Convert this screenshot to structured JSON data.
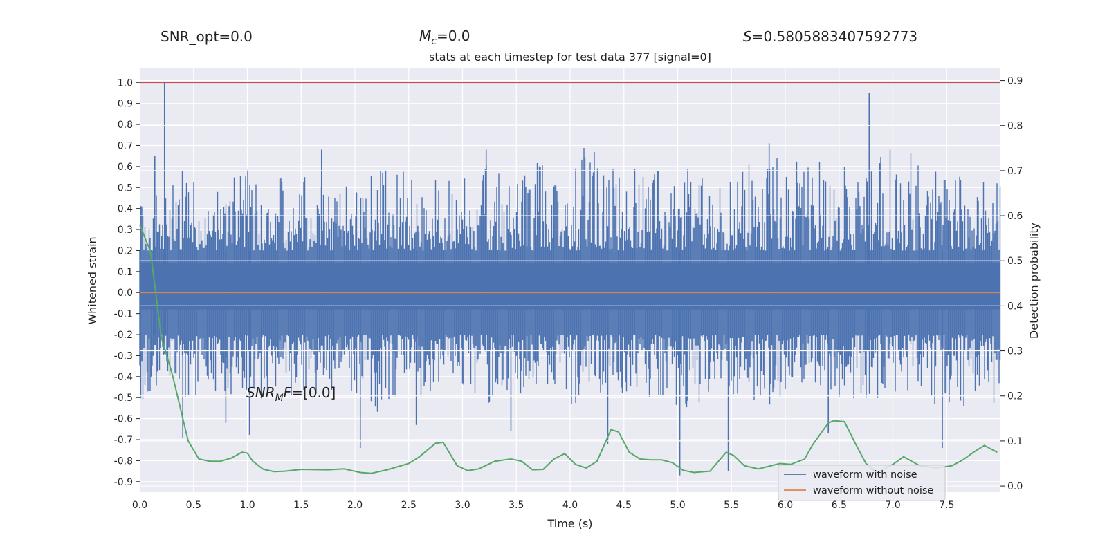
{
  "header": {
    "snr_opt_name": "SNR_opt",
    "snr_opt_value": "=0.0",
    "mc_main": "M",
    "mc_sub": "c",
    "mc_value": "=0.0",
    "s_name": "S",
    "s_value": "=0.5805883407592773"
  },
  "annotation": {
    "snr_main": "SNR",
    "snr_sub": "M",
    "snr_f": "F",
    "snr_value": "=[0.0]"
  },
  "chart_data": {
    "type": "line",
    "title": "stats at each timestep for test data 377 [signal=0]",
    "xlabel": "Time (s)",
    "ylabel": "Whitened strain",
    "y2label": "Detection probability",
    "xlim": [
      0.0,
      8.0
    ],
    "ylim": [
      -0.95,
      1.07
    ],
    "y2lim": [
      -0.0137,
      0.9285
    ],
    "xticks": [
      "0.0",
      "0.5",
      "1.0",
      "1.5",
      "2.0",
      "2.5",
      "3.0",
      "3.5",
      "4.0",
      "4.5",
      "5.0",
      "5.5",
      "6.0",
      "6.5",
      "7.0",
      "7.5"
    ],
    "yticks": [
      "1.0",
      "0.9",
      "0.8",
      "0.7",
      "0.6",
      "0.5",
      "0.4",
      "0.3",
      "0.2",
      "0.1",
      "0.0",
      "-0.1",
      "-0.2",
      "-0.3",
      "-0.4",
      "-0.5",
      "-0.6",
      "-0.7",
      "-0.8",
      "-0.9"
    ],
    "y2ticks": [
      "0.9",
      "0.8",
      "0.7",
      "0.6",
      "0.5",
      "0.4",
      "0.3",
      "0.2",
      "0.1",
      "0.0"
    ],
    "grid": true,
    "legend_position": "lower-right",
    "colors": {
      "noisy": "#4c72b0",
      "clean": "#dd8452",
      "probability": "#55a868",
      "threshold": "#c44e52",
      "background": "#eaeaf2",
      "grid": "#ffffff"
    },
    "series": [
      {
        "name": "waveform with noise",
        "axis": "left",
        "envelope_upper": [
          0.47,
          0.5,
          0.46,
          0.6,
          0.55,
          0.58,
          0.5,
          0.56,
          0.6,
          0.52,
          0.58,
          0.55,
          0.56,
          0.58,
          0.5,
          0.54,
          0.55,
          0.57,
          0.6,
          0.62,
          0.6,
          0.56,
          0.58,
          0.66,
          0.55,
          0.6,
          0.62,
          0.57,
          0.58,
          0.61,
          0.62,
          0.66,
          0.57,
          0.68,
          0.72,
          0.61,
          0.58,
          0.55,
          0.68,
          0.65,
          0.6,
          0.57,
          0.62,
          0.55,
          0.5,
          0.56,
          0.62,
          0.62,
          0.69,
          0.66,
          0.6,
          0.63,
          0.6,
          0.62,
          0.56,
          0.57,
          0.69,
          0.68,
          0.65,
          0.72,
          0.62,
          0.58,
          0.56,
          0.5,
          0.66,
          0.66
        ],
        "envelope_lower": [
          -0.56,
          -0.5,
          -0.47,
          -0.46,
          -0.55,
          -0.47,
          -0.49,
          -0.52,
          -0.49,
          -0.5,
          -0.55,
          -0.55,
          -0.48,
          -0.49,
          -0.56,
          -0.58,
          -0.5,
          -0.47,
          -0.59,
          -0.52,
          -0.45,
          -0.53,
          -0.5,
          -0.49,
          -0.48,
          -0.46,
          -0.6,
          -0.51,
          -0.49,
          -0.48,
          -0.48,
          -0.48,
          -0.52,
          -0.55,
          -0.47,
          -0.5,
          -0.54,
          -0.57,
          -0.57,
          -0.5,
          -0.52,
          -0.55,
          -0.55,
          -0.54,
          -0.45,
          -0.56,
          -0.57,
          -0.5,
          -0.56,
          -0.48,
          -0.53,
          -0.49,
          -0.53,
          -0.52,
          -0.52,
          -0.55,
          -0.53,
          -0.5,
          -0.54,
          -0.56,
          -0.55,
          -0.53,
          -0.56,
          -0.51,
          -0.55,
          -0.55
        ],
        "peaks": [
          [
            0.23,
            1.0
          ],
          [
            0.14,
            0.65
          ],
          [
            0.4,
            -0.69
          ],
          [
            0.8,
            -0.62
          ],
          [
            1.02,
            -0.68
          ],
          [
            2.05,
            -0.74
          ],
          [
            3.45,
            -0.66
          ],
          [
            4.35,
            -0.72
          ],
          [
            5.02,
            -0.87
          ],
          [
            5.47,
            -0.85
          ],
          [
            6.78,
            0.95
          ],
          [
            6.4,
            -0.67
          ],
          [
            7.46,
            -0.74
          ],
          [
            2.57,
            -0.63
          ],
          [
            1.69,
            0.68
          ],
          [
            3.22,
            0.68
          ],
          [
            5.85,
            0.71
          ]
        ]
      },
      {
        "name": "waveform without noise",
        "axis": "left",
        "x": [
          0.0,
          8.0
        ],
        "y": [
          0.0,
          0.0
        ]
      },
      {
        "name": "Detection probability",
        "axis": "right",
        "x": [
          0.0,
          0.1,
          0.2,
          0.3,
          0.4,
          0.45,
          0.55,
          0.65,
          0.75,
          0.85,
          0.95,
          1.0,
          1.05,
          1.15,
          1.25,
          1.35,
          1.5,
          1.75,
          1.9,
          2.05,
          2.15,
          2.3,
          2.5,
          2.6,
          2.75,
          2.82,
          2.95,
          3.05,
          3.15,
          3.3,
          3.45,
          3.55,
          3.65,
          3.75,
          3.85,
          3.95,
          4.05,
          4.15,
          4.25,
          4.38,
          4.45,
          4.55,
          4.65,
          4.75,
          4.85,
          4.95,
          5.05,
          5.15,
          5.3,
          5.45,
          5.52,
          5.62,
          5.75,
          5.95,
          6.05,
          6.18,
          6.25,
          6.4,
          6.45,
          6.55,
          6.65,
          6.75,
          6.85,
          7.0,
          7.1,
          7.25,
          7.4,
          7.55,
          7.65,
          7.75,
          7.85,
          7.97
        ],
        "y": [
          0.58,
          0.52,
          0.33,
          0.25,
          0.15,
          0.1,
          0.06,
          0.055,
          0.055,
          0.062,
          0.075,
          0.073,
          0.055,
          0.037,
          0.032,
          0.033,
          0.037,
          0.036,
          0.038,
          0.03,
          0.028,
          0.036,
          0.05,
          0.065,
          0.095,
          0.097,
          0.045,
          0.034,
          0.038,
          0.055,
          0.06,
          0.055,
          0.036,
          0.037,
          0.06,
          0.072,
          0.048,
          0.04,
          0.055,
          0.125,
          0.12,
          0.075,
          0.06,
          0.058,
          0.058,
          0.052,
          0.035,
          0.03,
          0.033,
          0.075,
          0.068,
          0.045,
          0.038,
          0.05,
          0.048,
          0.06,
          0.09,
          0.14,
          0.145,
          0.143,
          0.095,
          0.05,
          0.03,
          0.048,
          0.065,
          0.045,
          0.04,
          0.045,
          0.058,
          0.075,
          0.09,
          0.075
        ]
      },
      {
        "name": "threshold",
        "axis": "left",
        "x": [
          0.0,
          8.0
        ],
        "y": [
          1.0,
          1.0
        ]
      }
    ],
    "legend": [
      "waveform with noise",
      "waveform without noise"
    ]
  }
}
